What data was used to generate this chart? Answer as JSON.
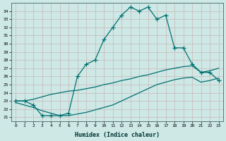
{
  "xlabel": "Humidex (Indice chaleur)",
  "xlim_min": -0.5,
  "xlim_max": 23.5,
  "ylim_min": 20.5,
  "ylim_max": 35.0,
  "xticks": [
    0,
    1,
    2,
    3,
    4,
    5,
    6,
    7,
    8,
    9,
    10,
    11,
    12,
    13,
    14,
    15,
    16,
    17,
    18,
    19,
    20,
    21,
    22,
    23
  ],
  "yticks": [
    21,
    22,
    23,
    24,
    25,
    26,
    27,
    28,
    29,
    30,
    31,
    32,
    33,
    34
  ],
  "background_color": "#cde8e5",
  "grid_color": "#c8b8b8",
  "line_color": "#007070",
  "hours": [
    0,
    1,
    2,
    3,
    4,
    5,
    6,
    7,
    8,
    9,
    10,
    11,
    12,
    13,
    14,
    15,
    16,
    17,
    18,
    19,
    20,
    21,
    22,
    23
  ],
  "main_line": [
    23.0,
    23.0,
    22.5,
    21.2,
    21.2,
    21.2,
    21.5,
    26.0,
    27.5,
    28.0,
    30.5,
    32.0,
    33.5,
    34.5,
    34.0,
    34.5,
    33.0,
    33.5,
    29.5,
    29.5,
    27.5,
    26.5,
    26.5,
    25.5
  ],
  "upper_line": [
    23.0,
    23.0,
    23.2,
    23.5,
    23.8,
    24.0,
    24.2,
    24.3,
    24.5,
    24.7,
    25.0,
    25.2,
    25.5,
    25.7,
    26.0,
    26.2,
    26.5,
    26.8,
    27.0,
    27.2,
    27.3,
    26.5,
    26.7,
    27.0
  ],
  "lower_line": [
    22.8,
    22.5,
    22.2,
    21.8,
    21.5,
    21.2,
    21.2,
    21.4,
    21.6,
    21.9,
    22.2,
    22.5,
    23.0,
    23.5,
    24.0,
    24.5,
    25.0,
    25.3,
    25.6,
    25.8,
    25.9,
    25.3,
    25.5,
    25.8
  ]
}
